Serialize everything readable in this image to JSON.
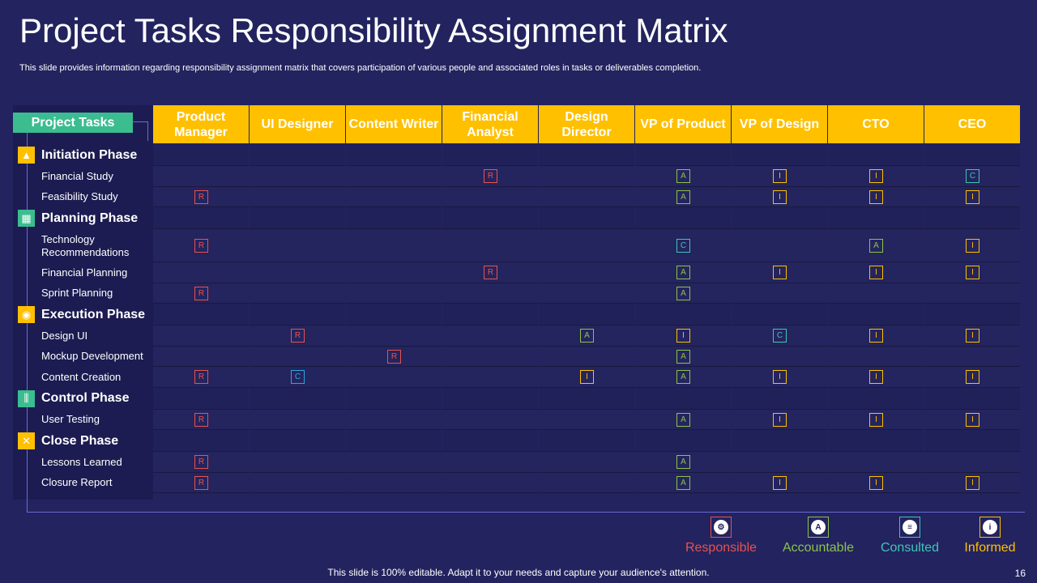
{
  "title": "Project Tasks Responsibility Assignment Matrix",
  "subtitle": "This slide provides information regarding responsibility assignment matrix that covers participation of various people and associated roles in tasks or deliverables completion.",
  "project_tasks_label": "Project Tasks",
  "roles": [
    "Product Manager",
    "UI Designer",
    "Content Writer",
    "Financial Analyst",
    "Design Director",
    "VP of Product",
    "VP of Design",
    "CTO",
    "CEO"
  ],
  "rows": [
    {
      "type": "phase",
      "label": "Initiation Phase",
      "icon": "rocket-icon",
      "icon_color": "#ffc000"
    },
    {
      "type": "task",
      "label": "Financial Study",
      "cells": [
        "",
        "",
        "",
        "R",
        "",
        "A",
        "I",
        "I",
        "C"
      ]
    },
    {
      "type": "task",
      "label": "Feasibility Study",
      "cells": [
        "R",
        "",
        "",
        "",
        "",
        "A",
        "I",
        "I",
        "I"
      ]
    },
    {
      "type": "phase",
      "label": "Planning Phase",
      "icon": "calendar-icon",
      "icon_color": "#3bbd8f"
    },
    {
      "type": "task",
      "label": "Technology Recommendations",
      "cells": [
        "R",
        "",
        "",
        "",
        "",
        "C",
        "",
        "A",
        "I"
      ]
    },
    {
      "type": "task",
      "label": "Financial Planning",
      "cells": [
        "",
        "",
        "",
        "R",
        "",
        "A",
        "I",
        "I",
        "I"
      ]
    },
    {
      "type": "task",
      "label": "Sprint Planning",
      "cells": [
        "R",
        "",
        "",
        "",
        "",
        "A",
        "",
        "",
        ""
      ]
    },
    {
      "type": "phase",
      "label": "Execution Phase",
      "icon": "team-icon",
      "icon_color": "#ffc000"
    },
    {
      "type": "task",
      "label": "Design UI",
      "cells": [
        "",
        "R",
        "",
        "",
        "A",
        "I",
        "C",
        "I",
        "I"
      ]
    },
    {
      "type": "task",
      "label": "Mockup Development",
      "cells": [
        "",
        "",
        "R",
        "",
        "",
        "A",
        "",
        "",
        ""
      ]
    },
    {
      "type": "task",
      "label": "Content Creation",
      "cells": [
        "R",
        "C",
        "",
        "",
        "I",
        "A",
        "I",
        "I",
        "I"
      ]
    },
    {
      "type": "phase",
      "label": "Control Phase",
      "icon": "sliders-icon",
      "icon_color": "#3bbd8f"
    },
    {
      "type": "task",
      "label": "User Testing",
      "cells": [
        "R",
        "",
        "",
        "",
        "",
        "A",
        "I",
        "I",
        "I"
      ]
    },
    {
      "type": "phase",
      "label": "Close Phase",
      "icon": "close-icon",
      "icon_color": "#ffc000"
    },
    {
      "type": "task",
      "label": "Lessons Learned",
      "cells": [
        "R",
        "",
        "",
        "",
        "",
        "A",
        "",
        "",
        ""
      ]
    },
    {
      "type": "task",
      "label": "Closure Report",
      "cells": [
        "R",
        "",
        "",
        "",
        "",
        "A",
        "I",
        "I",
        "I"
      ]
    }
  ],
  "legend": [
    {
      "label": "Responsible",
      "color": "#e8524f",
      "icon": "gear-team-icon"
    },
    {
      "label": "Accountable",
      "color": "#8bc34a",
      "icon": "badge-icon"
    },
    {
      "label": "Consulted",
      "color": "#3ec6b6",
      "icon": "document-icon"
    },
    {
      "label": "Informed",
      "color": "#ffc000",
      "icon": "info-icon"
    }
  ],
  "footer": "This slide is 100% editable. Adapt it to your needs and capture your audience's attention.",
  "page_number": "16"
}
